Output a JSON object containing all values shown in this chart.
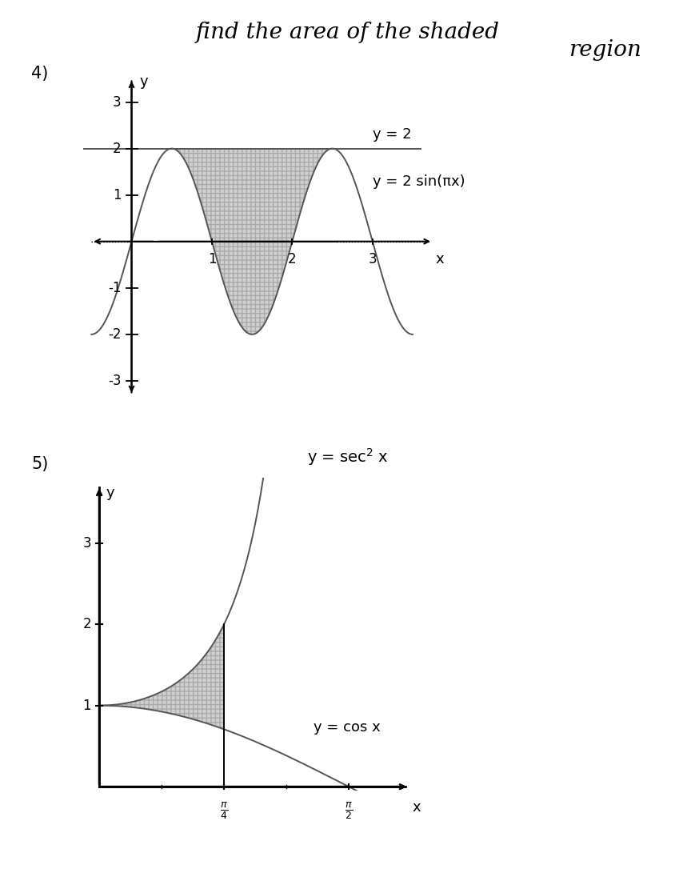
{
  "title": "find the area of the shaded",
  "title2": "region",
  "background_color": "#ffffff",
  "graph1": {
    "number": "4)",
    "xlim": [
      -0.6,
      3.9
    ],
    "ylim": [
      -3.5,
      3.7
    ],
    "xticks": [
      1,
      2,
      3
    ],
    "yticks": [
      -3,
      -2,
      -1,
      1,
      2,
      3
    ],
    "xlabel": "x",
    "ylabel": "y",
    "legend1": "y = 2",
    "legend2": "y = 2 sin(πx)",
    "shade_color": "#d0d0d0",
    "line_color": "#555555",
    "curve_xstart": -0.5,
    "curve_xend": 3.5,
    "shade_xstart": 0.5,
    "shade_xend": 2.5,
    "y_const": 2
  },
  "graph2": {
    "number": "5)",
    "xlim": [
      -0.1,
      2.0
    ],
    "ylim": [
      -0.05,
      3.8
    ],
    "yticks": [
      1,
      2,
      3
    ],
    "xlabel": "x",
    "ylabel": "y",
    "legend1": "y = sec² x",
    "legend2": "y = cos x",
    "shade_color": "#d0d0d0",
    "line_color": "#555555"
  }
}
